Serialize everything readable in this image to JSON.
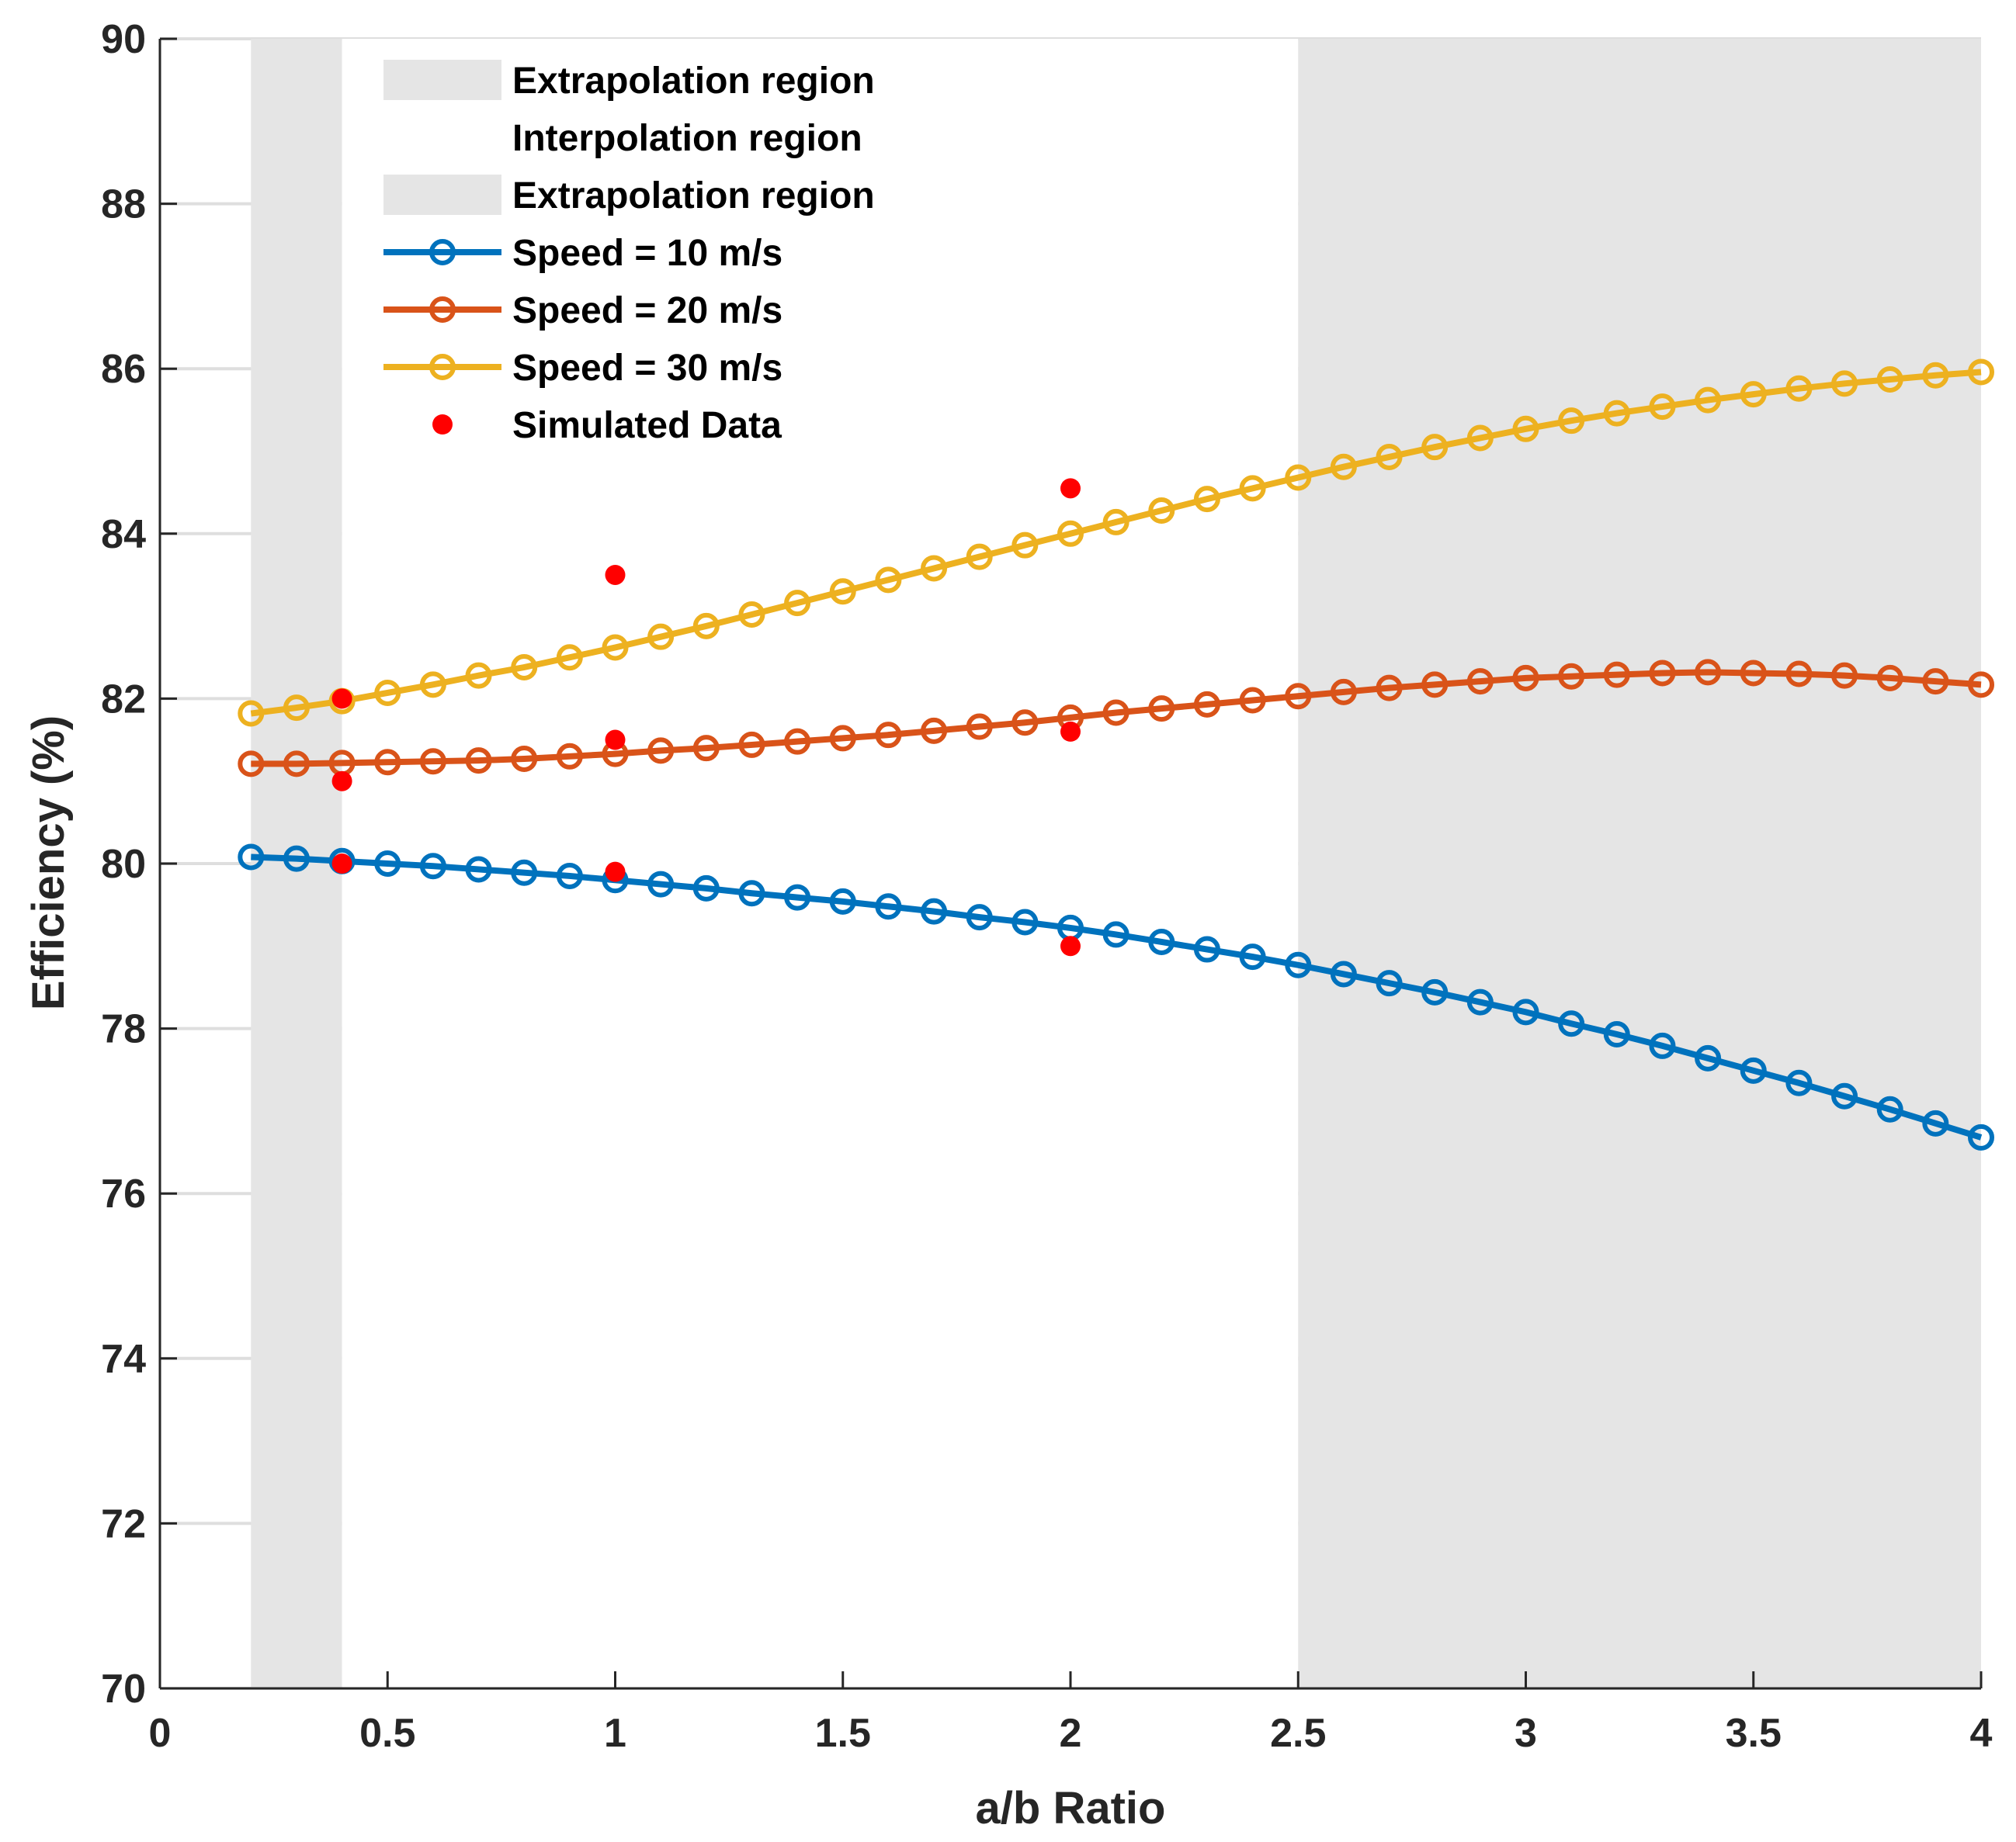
{
  "chart_data": {
    "type": "line",
    "title": "",
    "xlabel": "a/b Ratio",
    "ylabel": "Efficiency (%)",
    "xlim": [
      0,
      4
    ],
    "ylim": [
      70,
      90
    ],
    "xticks": [
      0,
      0.5,
      1,
      1.5,
      2,
      2.5,
      3,
      3.5,
      4
    ],
    "xtick_labels": [
      "0",
      "0.5",
      "1",
      "1.5",
      "2",
      "2.5",
      "3",
      "3.5",
      "4"
    ],
    "yticks": [
      70,
      72,
      74,
      76,
      78,
      80,
      82,
      84,
      86,
      88,
      90
    ],
    "ytick_labels": [
      "70",
      "72",
      "74",
      "76",
      "78",
      "80",
      "82",
      "84",
      "86",
      "88",
      "90"
    ],
    "grid": true,
    "legend_position": "top-left",
    "regions": [
      {
        "name": "Extrapolation region",
        "x": [
          0.2,
          0.4
        ],
        "color": "#e5e5e5"
      },
      {
        "name": "Interpolation region",
        "x": [
          0.4,
          2.5
        ],
        "color": "#ffffff"
      },
      {
        "name": "Extrapolation region",
        "x": [
          2.5,
          4.0
        ],
        "color": "#e5e5e5"
      }
    ],
    "x": [
      0.2,
      0.3,
      0.4,
      0.5,
      0.6,
      0.7,
      0.8,
      0.9,
      1.0,
      1.1,
      1.2,
      1.3,
      1.4,
      1.5,
      1.6,
      1.7,
      1.8,
      1.9,
      2.0,
      2.1,
      2.2,
      2.3,
      2.4,
      2.5,
      2.6,
      2.7,
      2.8,
      2.9,
      3.0,
      3.1,
      3.2,
      3.3,
      3.4,
      3.5,
      3.6,
      3.7,
      3.8,
      3.9,
      4.0
    ],
    "series": [
      {
        "name": "Speed = 10 m/s",
        "color": "#0072bd",
        "values": [
          80.08,
          80.06,
          80.03,
          80.0,
          79.97,
          79.93,
          79.89,
          79.85,
          79.8,
          79.75,
          79.7,
          79.64,
          79.59,
          79.54,
          79.48,
          79.42,
          79.35,
          79.29,
          79.22,
          79.14,
          79.05,
          78.96,
          78.87,
          78.77,
          78.66,
          78.55,
          78.44,
          78.32,
          78.2,
          78.06,
          77.93,
          77.79,
          77.64,
          77.49,
          77.34,
          77.18,
          77.02,
          76.85,
          76.68
        ]
      },
      {
        "name": "Speed = 20 m/s",
        "color": "#d95319",
        "values": [
          81.21,
          81.21,
          81.22,
          81.23,
          81.24,
          81.25,
          81.27,
          81.3,
          81.33,
          81.37,
          81.4,
          81.44,
          81.48,
          81.52,
          81.56,
          81.61,
          81.66,
          81.71,
          81.77,
          81.83,
          81.88,
          81.93,
          81.98,
          82.03,
          82.08,
          82.13,
          82.17,
          82.21,
          82.25,
          82.27,
          82.29,
          82.31,
          82.32,
          82.31,
          82.3,
          82.28,
          82.25,
          82.21,
          82.17
        ]
      },
      {
        "name": "Speed = 30 m/s",
        "color": "#edb120",
        "values": [
          81.82,
          81.89,
          81.97,
          82.07,
          82.17,
          82.28,
          82.38,
          82.5,
          82.62,
          82.75,
          82.88,
          83.02,
          83.16,
          83.3,
          83.44,
          83.58,
          83.72,
          83.86,
          84.0,
          84.14,
          84.28,
          84.42,
          84.55,
          84.68,
          84.81,
          84.93,
          85.05,
          85.16,
          85.27,
          85.37,
          85.46,
          85.54,
          85.62,
          85.69,
          85.76,
          85.82,
          85.87,
          85.92,
          85.96
        ]
      }
    ],
    "simulated": {
      "name": "Simulated Data",
      "color": "#ff0000",
      "points": [
        [
          0.4,
          82.0
        ],
        [
          0.4,
          81.0
        ],
        [
          0.4,
          80.0
        ],
        [
          1.0,
          83.5
        ],
        [
          1.0,
          81.5
        ],
        [
          1.0,
          79.9
        ],
        [
          2.0,
          84.55
        ],
        [
          2.0,
          81.6
        ],
        [
          2.0,
          79.0
        ]
      ]
    }
  }
}
